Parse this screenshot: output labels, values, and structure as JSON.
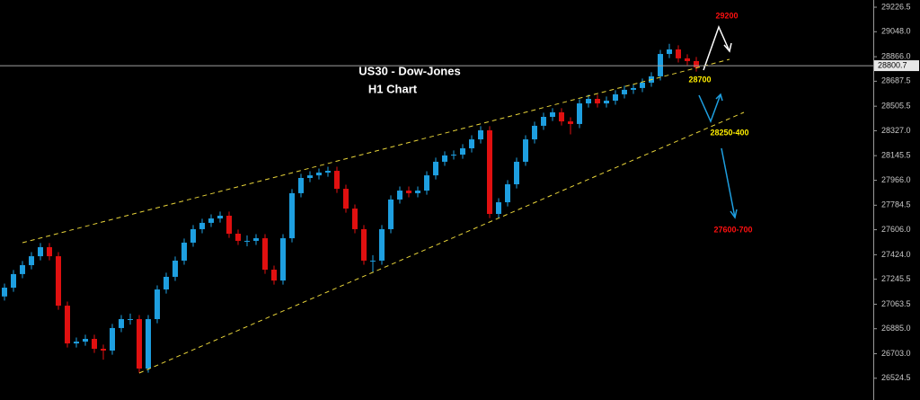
{
  "chart_data": {
    "type": "candlestick",
    "title": "US30 - Dow-Jones",
    "subtitle": "H1 Chart",
    "up_color": "#1e9fe0",
    "down_color": "#e01010",
    "ylim": [
      26366,
      29279
    ],
    "yticks": [
      29226.5,
      {
        "value": 29048,
        "label": "29048.0"
      },
      {
        "value": 28866,
        "label": "28866.0"
      },
      28687.5,
      28505.5,
      {
        "value": 28327,
        "label": "28327.0"
      },
      28145.5,
      {
        "value": 27966,
        "label": "27966.0"
      },
      27784.5,
      {
        "value": 27606,
        "label": "27606.0"
      },
      {
        "value": 27424,
        "label": "27424.0"
      },
      27245.5,
      27063.5,
      {
        "value": 26885,
        "label": "26885.0"
      },
      {
        "value": 26703,
        "label": "26703.0"
      },
      26524.5
    ],
    "current_price": 28800.7,
    "annotations": [
      {
        "text": "29200",
        "color": "#ff1010"
      },
      {
        "text": "28700",
        "color": "#ffee00"
      },
      {
        "text": "28250-400",
        "color": "#ffee00"
      },
      {
        "text": "27600-700",
        "color": "#ff1010"
      }
    ],
    "open": [
      27120,
      27184,
      27283,
      27348,
      27413,
      27479,
      27413,
      27053,
      26778,
      26791,
      26811,
      26739,
      26726,
      26890,
      26955,
      26955,
      26595,
      26955,
      27171,
      27263,
      27381,
      27512,
      27610,
      27656,
      27688,
      27708,
      27577,
      27525,
      27525,
      27544,
      27315,
      27236,
      27544,
      27872,
      27983,
      28002,
      28022,
      28035,
      27904,
      27760,
      27610,
      27381,
      27381,
      27610,
      27826,
      27891,
      27872,
      27891,
      28002,
      28101,
      28147,
      28153,
      28199,
      28264,
      28330,
      27721,
      27806,
      27937,
      28101,
      28264,
      28363,
      28428,
      28461,
      28395,
      28376,
      28526,
      28559,
      28526,
      28546,
      28592,
      28625,
      28638,
      28677,
      28723,
      28886,
      28919,
      28854,
      28834
    ],
    "high": [
      27214,
      27313,
      27378,
      27443,
      27509,
      27509,
      27443,
      27083,
      26821,
      26841,
      26841,
      26769,
      26920,
      26985,
      26995,
      26985,
      26985,
      27201,
      27293,
      27411,
      27542,
      27640,
      27686,
      27718,
      27738,
      27738,
      27607,
      27565,
      27574,
      27574,
      27345,
      27574,
      27902,
      28013,
      28032,
      28052,
      28065,
      28065,
      27934,
      27790,
      27640,
      27421,
      27640,
      27856,
      27921,
      27921,
      27921,
      28032,
      28131,
      28177,
      28183,
      28229,
      28294,
      28360,
      28360,
      27836,
      27967,
      28131,
      28294,
      28393,
      28458,
      28491,
      28491,
      28425,
      28556,
      28589,
      28589,
      28576,
      28622,
      28655,
      28668,
      28707,
      28753,
      28916,
      28960,
      28949,
      28884,
      28864
    ],
    "low": [
      27090,
      27154,
      27253,
      27318,
      27383,
      27383,
      27023,
      26748,
      26748,
      26761,
      26709,
      26660,
      26696,
      26860,
      26915,
      26565,
      26565,
      26925,
      27141,
      27233,
      27351,
      27482,
      27580,
      27626,
      27658,
      27547,
      27495,
      27485,
      27495,
      27285,
      27206,
      27206,
      27514,
      27842,
      27953,
      27972,
      27992,
      27874,
      27730,
      27580,
      27351,
      27300,
      27351,
      27580,
      27796,
      27842,
      27842,
      27861,
      27972,
      28071,
      28117,
      28123,
      28169,
      28234,
      27691,
      27691,
      27776,
      27907,
      28071,
      28234,
      28333,
      28398,
      28365,
      28300,
      28346,
      28496,
      28496,
      28496,
      28516,
      28562,
      28595,
      28608,
      28647,
      28693,
      28856,
      28824,
      28804,
      28758
    ],
    "close": [
      27184,
      27283,
      27348,
      27413,
      27479,
      27413,
      27053,
      26778,
      26791,
      26811,
      26739,
      26726,
      26890,
      26955,
      26955,
      26595,
      26955,
      27171,
      27263,
      27381,
      27512,
      27610,
      27656,
      27688,
      27708,
      27577,
      27525,
      27525,
      27544,
      27315,
      27236,
      27544,
      27872,
      27983,
      28002,
      28022,
      28035,
      27904,
      27760,
      27610,
      27381,
      27381,
      27610,
      27826,
      27891,
      27872,
      27891,
      28002,
      28101,
      28147,
      28153,
      28199,
      28264,
      28330,
      27721,
      27806,
      27937,
      28101,
      28264,
      28363,
      28428,
      28461,
      28395,
      28376,
      28526,
      28559,
      28526,
      28546,
      28592,
      28625,
      28638,
      28677,
      28723,
      28886,
      28919,
      28854,
      28834,
      28788
    ]
  }
}
